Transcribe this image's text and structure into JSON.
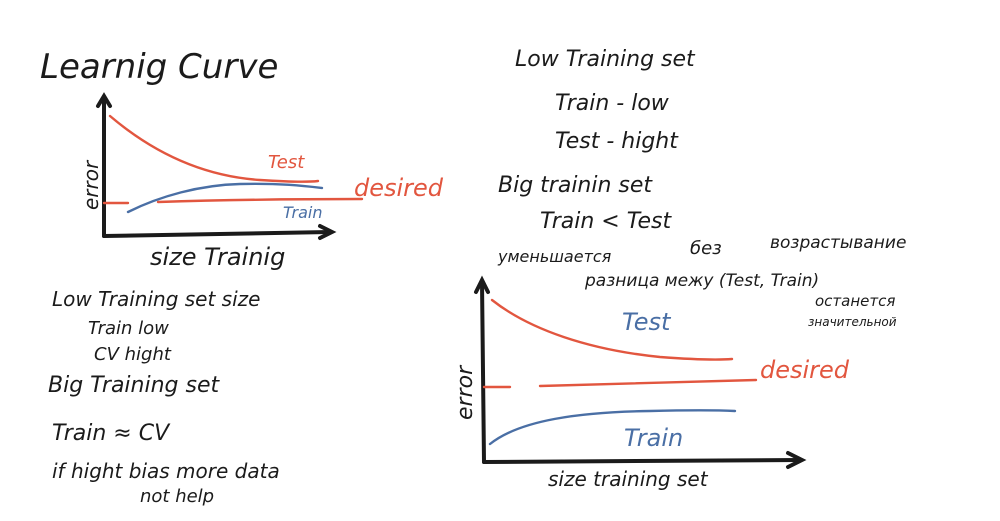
{
  "left_notes": {
    "title": "Learnig Curve",
    "chart": {
      "y_label": "error",
      "x_label": "size Trainig",
      "test_label": "Test",
      "desired_label": "desired",
      "train_label": "Train"
    },
    "lines": [
      "Low Training set size",
      "Train low",
      "CV hight",
      "Big Training set",
      "Train ≈ CV",
      "if hight bias more data",
      "not help"
    ]
  },
  "right_notes": {
    "lines": [
      "Low Training set",
      "Train - low",
      "Test - hight",
      "Big trainin set",
      "Train < Test"
    ],
    "annotations": [
      "уменьшается",
      "без",
      "возрастывание",
      "разница межу (Test, Train)",
      "останется",
      "значительной"
    ],
    "chart": {
      "y_label": "error",
      "x_label": "size training set",
      "test_label": "Test",
      "desired_label": "desired",
      "train_label": "Train"
    }
  },
  "colors": {
    "ink": "#1b1b1b",
    "test": "#e2563f",
    "train": "#4a6fa5"
  }
}
